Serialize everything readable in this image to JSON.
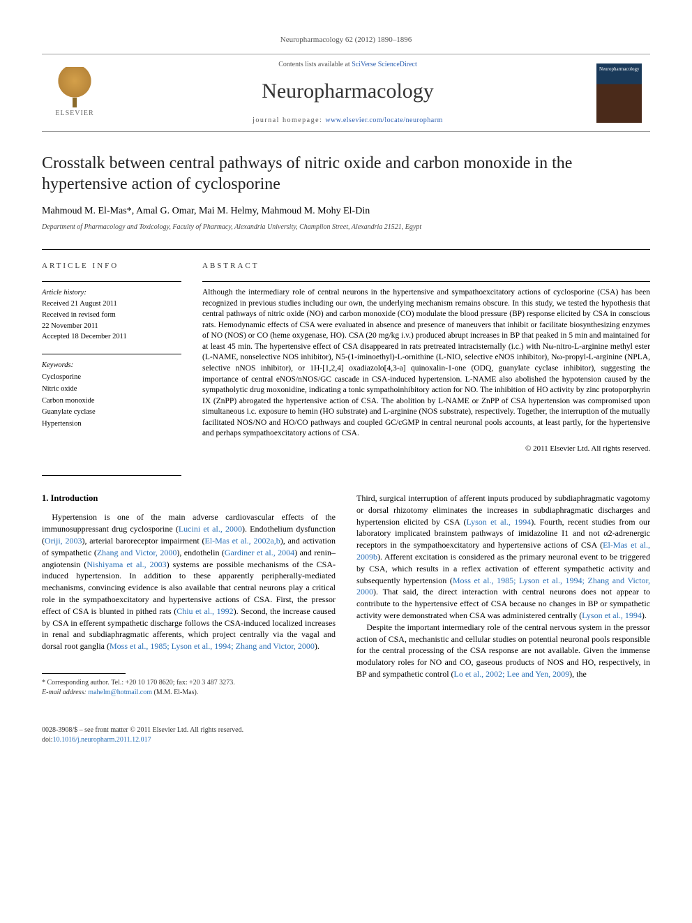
{
  "journal_ref": "Neuropharmacology 62 (2012) 1890–1896",
  "header": {
    "publisher_name": "ELSEVIER",
    "availability_prefix": "Contents lists available at ",
    "availability_link": "SciVerse ScienceDirect",
    "journal_name": "Neuropharmacology",
    "homepage_label": "journal homepage: ",
    "homepage_url": "www.elsevier.com/locate/neuropharm",
    "cover_title": "Neuropharmacology"
  },
  "article": {
    "title": "Crosstalk between central pathways of nitric oxide and carbon monoxide in the hypertensive action of cyclosporine",
    "authors": "Mahmoud M. El-Mas*, Amal G. Omar, Mai M. Helmy, Mahmoud M. Mohy El-Din",
    "affiliation": "Department of Pharmacology and Toxicology, Faculty of Pharmacy, Alexandria University, Champlion Street, Alexandria 21521, Egypt"
  },
  "info": {
    "heading": "ARTICLE INFO",
    "history_label": "Article history:",
    "history_received": "Received 21 August 2011",
    "history_revised": "Received in revised form",
    "history_revised_date": "22 November 2011",
    "history_accepted": "Accepted 18 December 2011",
    "keywords_label": "Keywords:",
    "keywords": [
      "Cyclosporine",
      "Nitric oxide",
      "Carbon monoxide",
      "Guanylate cyclase",
      "Hypertension"
    ]
  },
  "abstract": {
    "heading": "ABSTRACT",
    "text": "Although the intermediary role of central neurons in the hypertensive and sympathoexcitatory actions of cyclosporine (CSA) has been recognized in previous studies including our own, the underlying mechanism remains obscure. In this study, we tested the hypothesis that central pathways of nitric oxide (NO) and carbon monoxide (CO) modulate the blood pressure (BP) response elicited by CSA in conscious rats. Hemodynamic effects of CSA were evaluated in absence and presence of maneuvers that inhibit or facilitate biosynthesizing enzymes of NO (NOS) or CO (heme oxygenase, HO). CSA (20 mg/kg i.v.) produced abrupt increases in BP that peaked in 5 min and maintained for at least 45 min. The hypertensive effect of CSA disappeared in rats pretreated intracisternally (i.c.) with Nω-nitro-L-arginine methyl ester (L-NAME, nonselective NOS inhibitor), N5-(1-iminoethyl)-L-ornithine (L-NIO, selective eNOS inhibitor), Nω-propyl-L-arginine (NPLA, selective nNOS inhibitor), or 1H-[1,2,4] oxadiazolo[4,3-a] quinoxalin-1-one (ODQ, guanylate cyclase inhibitor), suggesting the importance of central eNOS/nNOS/GC cascade in CSA-induced hypertension. L-NAME also abolished the hypotension caused by the sympatholytic drug moxonidine, indicating a tonic sympathoinhibitory action for NO. The inhibition of HO activity by zinc protoporphyrin IX (ZnPP) abrogated the hypertensive action of CSA. The abolition by L-NAME or ZnPP of CSA hypertension was compromised upon simultaneous i.c. exposure to hemin (HO substrate) and L-arginine (NOS substrate), respectively. Together, the interruption of the mutually facilitated NOS/NO and HO/CO pathways and coupled GC/cGMP in central neuronal pools accounts, at least partly, for the hypertensive and perhaps sympathoexcitatory actions of CSA.",
    "copyright": "© 2011 Elsevier Ltd. All rights reserved."
  },
  "body": {
    "section_heading": "1. Introduction",
    "col1_p1_a": "Hypertension is one of the main adverse cardiovascular effects of the immunosuppressant drug cyclosporine (",
    "col1_ref1": "Lucini et al., 2000",
    "col1_p1_b": "). Endothelium dysfunction (",
    "col1_ref2": "Oriji, 2003",
    "col1_p1_c": "), arterial baroreceptor impairment (",
    "col1_ref3": "El-Mas et al., 2002a,b",
    "col1_p1_d": "), and activation of sympathetic (",
    "col1_ref4": "Zhang and Victor, 2000",
    "col1_p1_e": "), endothelin (",
    "col1_ref5": "Gardiner et al., 2004",
    "col1_p1_f": ") and renin–angiotensin (",
    "col1_ref6": "Nishiyama et al., 2003",
    "col1_p1_g": ") systems are possible mechanisms of the CSA-induced hypertension. In addition to these apparently peripherally-mediated mechanisms, convincing evidence is also available that central neurons play a critical role in the sympathoexcitatory and hypertensive actions of CSA. First, the pressor effect of CSA is blunted in pithed rats (",
    "col1_ref7": "Chiu et al., 1992",
    "col1_p1_h": "). Second, the increase caused by CSA in efferent sympathetic discharge follows the CSA-induced localized increases in renal and subdiaphragmatic afferents, which project centrally via the vagal and dorsal root ganglia (",
    "col1_ref8": "Moss et al., 1985; Lyson et al., 1994; Zhang and Victor, 2000",
    "col1_p1_i": ").",
    "col2_p1_a": "Third, surgical interruption of afferent inputs produced by subdiaphragmatic vagotomy or dorsal rhizotomy eliminates the increases in subdiaphragmatic discharges and hypertension elicited by CSA (",
    "col2_ref1": "Lyson et al., 1994",
    "col2_p1_b": "). Fourth, recent studies from our laboratory implicated brainstem pathways of imidazoline I1 and not α2-adrenergic receptors in the sympathoexcitatory and hypertensive actions of CSA (",
    "col2_ref2": "El-Mas et al., 2009b",
    "col2_p1_c": "). Afferent excitation is considered as the primary neuronal event to be triggered by CSA, which results in a reflex activation of efferent sympathetic activity and subsequently hypertension (",
    "col2_ref3": "Moss et al., 1985; Lyson et al., 1994; Zhang and Victor, 2000",
    "col2_p1_d": "). That said, the direct interaction with central neurons does not appear to contribute to the hypertensive effect of CSA because no changes in BP or sympathetic activity were demonstrated when CSA was administered centrally (",
    "col2_ref4": "Lyson et al., 1994",
    "col2_p1_e": ").",
    "col2_p2_a": "Despite the important intermediary role of the central nervous system in the pressor action of CSA, mechanistic and cellular studies on potential neuronal pools responsible for the central processing of the CSA response are not available. Given the immense modulatory roles for NO and CO, gaseous products of NOS and HO, respectively, in BP and sympathetic control (",
    "col2_ref5": "Lo et al., 2002; Lee and Yen, 2009",
    "col2_p2_b": "), the"
  },
  "footnotes": {
    "corr_label": "* Corresponding author. Tel.: +20 10 170 8620; fax: +20 3 487 3273.",
    "email_label": "E-mail address: ",
    "email": "mahelm@hotmail.com",
    "email_suffix": " (M.M. El-Mas).",
    "issn_line": "0028-3908/$ – see front matter © 2011 Elsevier Ltd. All rights reserved.",
    "doi_prefix": "doi:",
    "doi": "10.1016/j.neuropharm.2011.12.017"
  },
  "colors": {
    "link": "#2a6fb5",
    "text": "#000000",
    "muted": "#555555"
  }
}
